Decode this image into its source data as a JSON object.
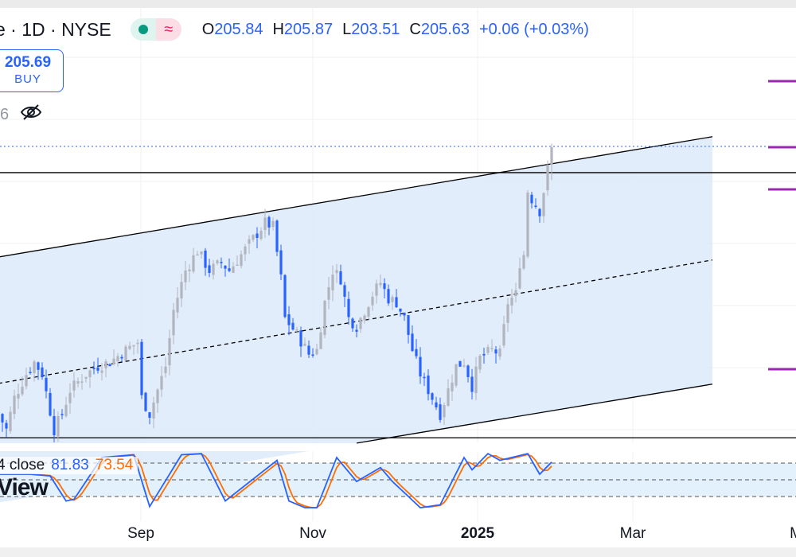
{
  "header": {
    "title": "e · 1D · NYSE",
    "open_label": "O",
    "open": "205.84",
    "high_label": "H",
    "high": "205.87",
    "low_label": "L",
    "low": "203.51",
    "close_label": "C",
    "close": "205.63",
    "change": "+0.06 (+0.03%)"
  },
  "buy_button": {
    "price": "205.69",
    "label": "BUY"
  },
  "indicator_row": {
    "value": "6",
    "icon": "eye-off-icon"
  },
  "stoch": {
    "label": "4 close",
    "k": "81.83",
    "d": "73.54"
  },
  "logo_text": "View",
  "x_axis": [
    "Sep",
    "Nov",
    "2025",
    "Mar",
    "M"
  ],
  "colors": {
    "accent": "#2962ff",
    "down_candle": "#2962ff",
    "up_candle": "#b2b5be",
    "channel_fill": "#ddeafb",
    "stoch_k": "#2962ff",
    "stoch_d": "#ff6d00",
    "level_marker": "#9c27b0"
  },
  "chart_data": {
    "type": "candlestick",
    "close_path_day_price": [
      [
        0,
        188.44
      ],
      [
        2,
        187.42
      ],
      [
        4,
        189.47
      ],
      [
        7,
        191.01
      ],
      [
        9,
        191.78
      ],
      [
        11,
        191.01
      ],
      [
        14,
        187.42
      ],
      [
        16,
        188.44
      ],
      [
        18,
        189.98
      ],
      [
        20,
        190.5
      ],
      [
        22,
        191.01
      ],
      [
        25,
        191.52
      ],
      [
        28,
        191.78
      ],
      [
        32,
        192.55
      ],
      [
        35,
        193.06
      ],
      [
        36,
        189.47
      ],
      [
        38,
        188.44
      ],
      [
        40,
        189.98
      ],
      [
        42,
        191.52
      ],
      [
        44,
        195.11
      ],
      [
        47,
        197.68
      ],
      [
        50,
        198.96
      ],
      [
        53,
        197.68
      ],
      [
        56,
        198.19
      ],
      [
        58,
        197.68
      ],
      [
        61,
        198.7
      ],
      [
        64,
        199.73
      ],
      [
        67,
        200.76
      ],
      [
        69,
        200.5
      ],
      [
        71,
        197.17
      ],
      [
        72,
        194.6
      ],
      [
        75,
        193.57
      ],
      [
        78,
        192.29
      ],
      [
        80,
        192.55
      ],
      [
        82,
        195.63
      ],
      [
        84,
        197.68
      ],
      [
        86,
        197.17
      ],
      [
        88,
        194.6
      ],
      [
        90,
        194.09
      ],
      [
        92,
        195.11
      ],
      [
        94,
        196.14
      ],
      [
        96,
        196.91
      ],
      [
        98,
        195.88
      ],
      [
        100,
        195.63
      ],
      [
        102,
        194.6
      ],
      [
        104,
        192.55
      ],
      [
        106,
        191.01
      ],
      [
        108,
        189.98
      ],
      [
        111,
        188.44
      ],
      [
        113,
        189.98
      ],
      [
        115,
        191.52
      ],
      [
        117,
        191.78
      ],
      [
        119,
        190.23
      ],
      [
        121,
        192.03
      ],
      [
        124,
        192.55
      ],
      [
        126,
        192.29
      ],
      [
        128,
        195.63
      ],
      [
        130,
        196.14
      ],
      [
        131,
        198.19
      ],
      [
        132,
        198.7
      ],
      [
        133,
        202.81
      ],
      [
        134,
        202.3
      ],
      [
        136,
        201.52
      ],
      [
        137,
        202.81
      ],
      [
        139,
        205.63
      ]
    ],
    "last_candle": {
      "open": 205.84,
      "high": 205.87,
      "low": 203.51,
      "close": 205.63
    },
    "channel": {
      "upper": [
        [
          0,
          198.55
        ],
        [
          179,
          206.29
        ]
      ],
      "middle": [
        [
          0,
          190.4
        ],
        [
          179,
          198.34
        ]
      ],
      "lower": [
        [
          90,
          186.55
        ],
        [
          179,
          190.34
        ]
      ]
    },
    "horizontal_levels": [
      203.99,
      186.9
    ],
    "stochastic_k_day_value": [
      [
        0,
        60
      ],
      [
        8,
        60
      ],
      [
        13,
        57
      ],
      [
        17,
        12
      ],
      [
        19,
        15
      ],
      [
        26,
        90
      ],
      [
        34,
        95
      ],
      [
        38,
        2
      ],
      [
        46,
        95
      ],
      [
        51,
        97
      ],
      [
        57,
        12
      ],
      [
        70,
        85
      ],
      [
        73,
        12
      ],
      [
        77,
        0
      ],
      [
        80,
        0
      ],
      [
        85,
        90
      ],
      [
        90,
        47
      ],
      [
        96,
        72
      ],
      [
        99,
        47
      ],
      [
        106,
        0
      ],
      [
        111,
        5
      ],
      [
        117,
        90
      ],
      [
        119,
        68
      ],
      [
        123,
        97
      ],
      [
        126,
        85
      ],
      [
        133,
        97
      ],
      [
        136,
        60
      ],
      [
        139,
        81.83
      ]
    ],
    "stoch_levels": [
      80,
      50,
      20
    ]
  }
}
